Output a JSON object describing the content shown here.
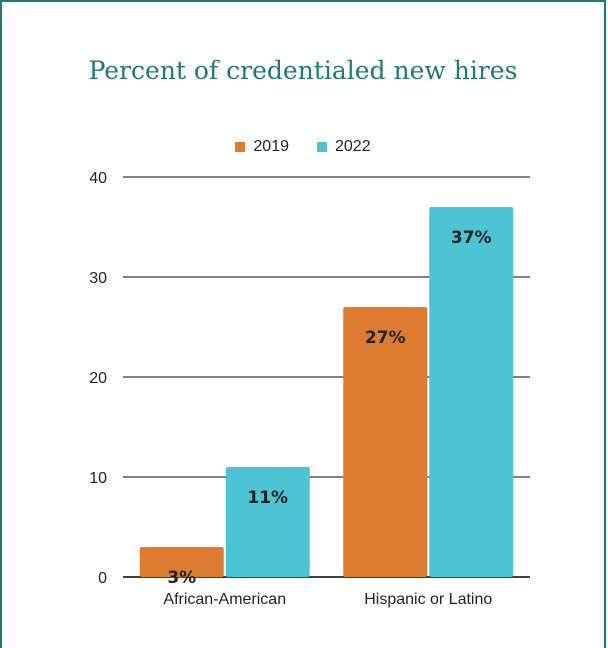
{
  "chart_data": {
    "type": "bar",
    "title": "Percent of credentialed new hires",
    "categories": [
      "African-American",
      "Hispanic or Latino"
    ],
    "series": [
      {
        "name": "2019",
        "values": [
          3,
          27
        ],
        "labels": [
          "3%",
          "27%"
        ],
        "color": "#dd7b31"
      },
      {
        "name": "2022",
        "values": [
          11,
          37
        ],
        "labels": [
          "11%",
          "37%"
        ],
        "color": "#4dc4d3"
      }
    ],
    "yticks": [
      "0",
      "10",
      "20",
      "30",
      "40"
    ],
    "ylim": [
      0,
      40
    ],
    "grid": true,
    "legend": "top-center"
  }
}
